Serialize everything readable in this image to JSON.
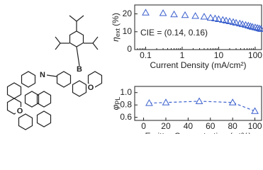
{
  "molecule": {
    "atoms": [
      "N",
      "B",
      "O",
      "O"
    ]
  },
  "chart_data": [
    {
      "type": "scatter",
      "ylabel": "η",
      "ylabel_sub": "ext",
      "ylabel_unit": "(%)",
      "xlabel": "Current Density (mA/cm²)",
      "annotation": "CIE = (0.14, 0.16)",
      "xscale": "log",
      "xlim": [
        0.05,
        150
      ],
      "xticks": [
        0.1,
        1,
        10,
        100
      ],
      "ylim": [
        0,
        25
      ],
      "yticks": [
        0,
        10,
        20
      ],
      "marker": "triangle",
      "line": "none",
      "series": [
        {
          "name": null,
          "color": "#3a5fcd",
          "x": [
            0.1,
            0.3,
            0.6,
            1.2,
            2.3,
            4,
            6,
            8,
            10,
            13,
            16,
            20,
            25,
            30,
            38,
            45,
            55,
            65,
            75,
            85,
            100,
            115,
            130,
            145
          ],
          "values": [
            20.7,
            20.4,
            19.7,
            19.3,
            18.8,
            18.4,
            17.8,
            17.4,
            17,
            16.6,
            16.2,
            15.8,
            15.4,
            15,
            14.6,
            14.2,
            13.8,
            13.4,
            13,
            12.7,
            12.4,
            12.1,
            11.8,
            11.5
          ]
        }
      ]
    },
    {
      "type": "scatter",
      "ylabel": "φ",
      "ylabel_sub": "PL",
      "xlabel": "Emitter Concentration (wt%)",
      "xlim": [
        -8,
        106
      ],
      "xticks": [
        0,
        20,
        40,
        60,
        80,
        100
      ],
      "ylim": [
        0.55,
        1.1
      ],
      "yticks": [
        0.6,
        0.8,
        {
          "value": 1,
          "label": "1.0"
        }
      ],
      "marker": "triangle",
      "line": "dashed",
      "series": [
        {
          "name": null,
          "color": "#3a5fcd",
          "x": [
            5,
            20,
            50,
            80,
            100
          ],
          "values": [
            0.83,
            0.84,
            0.86,
            0.84,
            0.7
          ]
        }
      ]
    }
  ]
}
